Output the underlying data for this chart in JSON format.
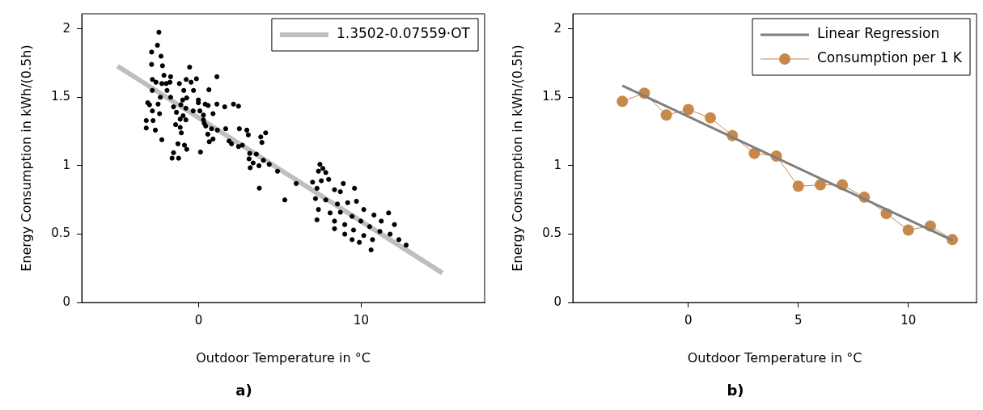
{
  "chart_data": [
    {
      "type": "scatter",
      "title": "a)",
      "xlabel": "Outdoor Temperature in °C",
      "ylabel": "Energy Consumption in kWh/(0.5h)",
      "xlim": [
        -7.2,
        17.6
      ],
      "xticks": [
        0,
        10
      ],
      "ylim": [
        0,
        2.11
      ],
      "yticks": [
        0,
        0.5,
        1,
        1.5,
        2
      ],
      "grid": false,
      "legend": "top right",
      "series": [
        {
          "color": "#000000",
          "marker": "circle",
          "x": [
            -2.45,
            -2.54,
            -2.9,
            -2.32,
            -2.9,
            -2.23,
            -0.56,
            -2.14,
            -1.73,
            1.12,
            -2.85,
            -2.63,
            -0.77,
            -0.47,
            -0.14,
            -1.77,
            -2.27,
            -1.19,
            -2.0,
            -2.86,
            -1.95,
            -0.92,
            -0.32,
            0.63,
            -1.73,
            -2.36,
            -0.74,
            -0.99,
            -0.02,
            -3.14,
            -2.5,
            -3.03,
            -1.1,
            -0.02,
            0.4,
            0.58,
            1.12,
            1.6,
            2.14,
            2.45,
            -1.55,
            -0.79,
            -0.34,
            0.07,
            -2.85,
            -1.37,
            -2.41,
            0.88,
            0.29,
            -0.96,
            -3.23,
            -2.81,
            -1.14,
            -0.79,
            0.29,
            0.34,
            0.43,
            -1.42,
            -3.23,
            -2.67,
            -1.14,
            0.79,
            1.15,
            1.66,
            -1.07,
            -2.27,
            0.56,
            0.88,
            0.65,
            2.5,
            2.96,
            3.05,
            4.12,
            3.82,
            3.89,
            1.87,
            2.02,
            2.45,
            2.69,
            -1.28,
            -0.88,
            -0.74,
            -1.55,
            -1.64,
            -1.24,
            0.11,
            3.14,
            3.55,
            3.1,
            3.35,
            3.98,
            3.17,
            3.71,
            4.34,
            4.85,
            3.73,
            5.3,
            6.0,
            7.46,
            7.64,
            7.37,
            7.82,
            7.01,
            7.55,
            8.0,
            8.9,
            9.59,
            7.28,
            8.36,
            8.72,
            7.19,
            7.82,
            8.54,
            9.17,
            9.71,
            7.37,
            8.09,
            8.72,
            10.16,
            9.44,
            10.79,
            11.69,
            7.28,
            8.36,
            9.98,
            11.24,
            12.05,
            8.99,
            10.52,
            8.36,
            9.53,
            11.15,
            11.78,
            8.99,
            10.16,
            9.44,
            12.32,
            10.7,
            9.89,
            12.77,
            10.61
          ],
          "values": [
            1.975,
            1.88,
            1.83,
            1.8,
            1.74,
            1.73,
            1.72,
            1.66,
            1.65,
            1.65,
            1.63,
            1.61,
            1.63,
            1.61,
            1.635,
            1.61,
            1.6,
            1.6,
            1.6,
            1.55,
            1.55,
            1.55,
            1.55,
            1.555,
            1.5,
            1.5,
            1.495,
            1.48,
            1.48,
            1.46,
            1.45,
            1.445,
            1.445,
            1.46,
            1.45,
            1.44,
            1.45,
            1.43,
            1.45,
            1.435,
            1.43,
            1.42,
            1.4,
            1.4,
            1.4,
            1.39,
            1.38,
            1.38,
            1.37,
            1.365,
            1.33,
            1.33,
            1.34,
            1.335,
            1.335,
            1.31,
            1.29,
            1.3,
            1.275,
            1.26,
            1.28,
            1.27,
            1.26,
            1.27,
            1.24,
            1.19,
            1.23,
            1.195,
            1.175,
            1.27,
            1.26,
            1.225,
            1.24,
            1.21,
            1.17,
            1.18,
            1.16,
            1.14,
            1.15,
            1.16,
            1.15,
            1.12,
            1.095,
            1.055,
            1.055,
            1.1,
            1.09,
            1.085,
            1.05,
            1.02,
            1.04,
            0.985,
            1.0,
            1.01,
            0.96,
            0.836,
            0.75,
            0.87,
            1.01,
            0.98,
            0.96,
            0.95,
            0.88,
            0.89,
            0.9,
            0.87,
            0.835,
            0.835,
            0.825,
            0.81,
            0.76,
            0.75,
            0.72,
            0.73,
            0.74,
            0.68,
            0.655,
            0.66,
            0.68,
            0.63,
            0.64,
            0.655,
            0.605,
            0.595,
            0.595,
            0.595,
            0.57,
            0.57,
            0.555,
            0.54,
            0.53,
            0.52,
            0.5,
            0.5,
            0.49,
            0.46,
            0.46,
            0.46,
            0.44,
            0.42,
            0.385
          ]
        },
        {
          "type": "line",
          "name": "1.3502-0.07559·OT",
          "color": "#bfbfbf",
          "marker": "none",
          "x": [
            -5,
            15
          ],
          "values": [
            1.728,
            0.216
          ]
        }
      ]
    },
    {
      "type": "line",
      "title": "b)",
      "xlabel": "Outdoor Temperature in °C",
      "ylabel": "Energy Consumption in kWh/(0.5h)",
      "xlim": [
        -5.25,
        13.1
      ],
      "xticks": [
        0,
        5,
        10
      ],
      "ylim": [
        0,
        2.11
      ],
      "yticks": [
        0,
        0.5,
        1,
        1.5,
        2
      ],
      "grid": false,
      "legend": "top right",
      "series": [
        {
          "name": "Linear Regression",
          "color": "#7f7f7f",
          "marker": "none",
          "x": [
            -3,
            12
          ],
          "values": [
            1.585,
            0.455
          ]
        },
        {
          "name": "Consumption per 1 K",
          "color": "#c8884a",
          "marker": "circle",
          "x": [
            -3,
            -2,
            -1,
            0,
            1,
            2,
            3,
            4,
            5,
            6,
            7,
            8,
            9,
            10,
            11,
            12
          ],
          "values": [
            1.47,
            1.53,
            1.37,
            1.41,
            1.35,
            1.22,
            1.09,
            1.07,
            0.85,
            0.86,
            0.86,
            0.77,
            0.65,
            0.53,
            0.56,
            0.46
          ]
        }
      ]
    }
  ]
}
